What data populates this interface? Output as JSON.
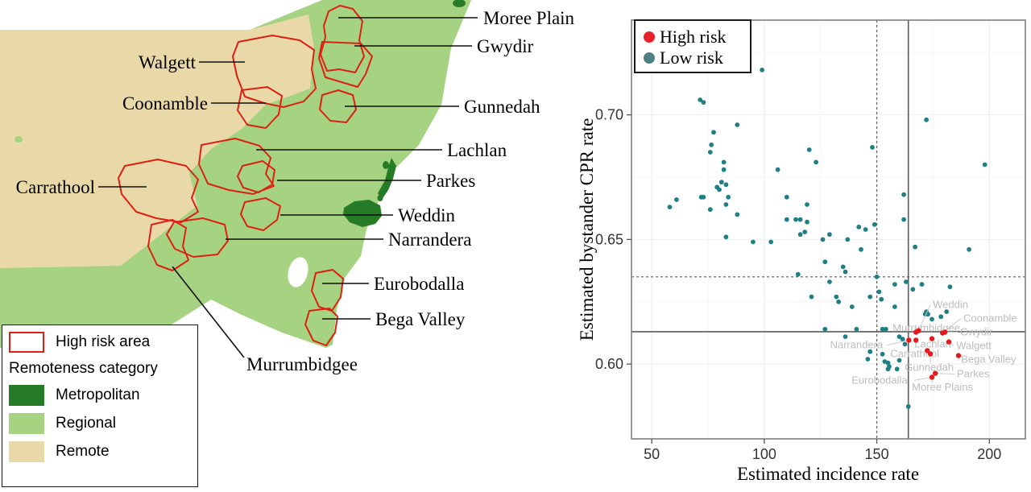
{
  "map": {
    "region_labels": [
      "Moree Plain",
      "Gwydir",
      "Walgett",
      "Coonamble",
      "Gunnedah",
      "Lachlan",
      "Carrathool",
      "Parkes",
      "Weddin",
      "Narrandera",
      "Eurobodalla",
      "Bega Valley",
      "Murrumbidgee"
    ],
    "legend": {
      "high_risk_label": "High risk area",
      "remoteness_title": "Remoteness category",
      "high_risk_outline_color": "#dd1f14",
      "categories": [
        {
          "label": "Metropolitan",
          "color": "#267b26"
        },
        {
          "label": "Regional",
          "color": "#a6d382"
        },
        {
          "label": "Remote",
          "color": "#ead9a8"
        }
      ]
    }
  },
  "chart_data": {
    "type": "scatter",
    "xlabel": "Estimated incidence rate",
    "ylabel": "Estimated bystander CPR rate",
    "xlim": [
      41,
      216
    ],
    "ylim": [
      0.57,
      0.738
    ],
    "x_ticks": [
      "50",
      "100",
      "150",
      "200"
    ],
    "y_ticks": [
      "0.70",
      "0.65",
      "0.60"
    ],
    "y_tick_values": [
      0.7,
      0.65,
      0.6
    ],
    "x_tick_values": [
      50,
      100,
      150,
      200
    ],
    "grid": true,
    "legend": {
      "position": "top-left",
      "entries": [
        {
          "label": "High risk",
          "color": "#e8202a"
        },
        {
          "label": "Low risk",
          "color": "#4e7f83"
        }
      ]
    },
    "reference_lines": {
      "solid_x": 164,
      "solid_y": 0.613,
      "dashed_x": 150,
      "dashed_y": 0.635
    },
    "series": [
      {
        "name": "High risk",
        "color": "#e41a1c",
        "points": [
          [
            167.4,
            0.6128
          ],
          [
            168.5,
            0.6134
          ],
          [
            164.2,
            0.6096
          ],
          [
            167.4,
            0.6096
          ],
          [
            174.5,
            0.6102
          ],
          [
            179.2,
            0.6125
          ],
          [
            180.3,
            0.6128
          ],
          [
            182.0,
            0.6089
          ],
          [
            172.4,
            0.6054
          ],
          [
            186.3,
            0.6034
          ],
          [
            176.0,
            0.5963
          ],
          [
            174.5,
            0.5947
          ],
          [
            173.8,
            0.6041
          ]
        ]
      },
      {
        "name": "Low risk",
        "color": "#1f7f84",
        "points": [
          [
            99,
            0.718
          ],
          [
            71.5,
            0.706
          ],
          [
            73,
            0.705
          ],
          [
            88,
            0.696
          ],
          [
            77.5,
            0.693
          ],
          [
            76.5,
            0.688
          ],
          [
            76,
            0.685
          ],
          [
            120,
            0.686
          ],
          [
            123,
            0.681
          ],
          [
            82,
            0.681
          ],
          [
            82,
            0.678
          ],
          [
            106,
            0.678
          ],
          [
            81,
            0.673
          ],
          [
            79,
            0.671
          ],
          [
            80,
            0.67
          ],
          [
            83,
            0.672
          ],
          [
            61,
            0.666
          ],
          [
            58,
            0.663
          ],
          [
            72,
            0.667
          ],
          [
            73,
            0.667
          ],
          [
            76,
            0.662
          ],
          [
            83,
            0.664
          ],
          [
            84,
            0.667
          ],
          [
            88,
            0.66
          ],
          [
            110,
            0.667
          ],
          [
            110,
            0.658
          ],
          [
            114,
            0.658
          ],
          [
            116,
            0.658
          ],
          [
            119,
            0.664
          ],
          [
            119,
            0.657
          ],
          [
            118,
            0.653
          ],
          [
            116,
            0.652
          ],
          [
            126,
            0.65
          ],
          [
            129,
            0.652
          ],
          [
            83,
            0.651
          ],
          [
            95,
            0.649
          ],
          [
            103,
            0.649
          ],
          [
            172,
            0.698
          ],
          [
            148,
            0.687
          ],
          [
            198,
            0.68
          ],
          [
            162,
            0.668
          ],
          [
            162,
            0.658
          ],
          [
            149,
            0.656
          ],
          [
            142,
            0.655
          ],
          [
            145,
            0.654
          ],
          [
            137,
            0.65
          ],
          [
            143,
            0.646
          ],
          [
            167,
            0.647
          ],
          [
            191,
            0.646
          ],
          [
            127,
            0.641
          ],
          [
            115,
            0.636
          ],
          [
            135,
            0.639
          ],
          [
            136,
            0.637
          ],
          [
            129,
            0.633
          ],
          [
            121,
            0.627
          ],
          [
            132,
            0.627
          ],
          [
            127,
            0.614
          ],
          [
            133,
            0.625
          ],
          [
            139,
            0.623
          ],
          [
            147,
            0.627
          ],
          [
            150,
            0.635
          ],
          [
            151,
            0.629
          ],
          [
            152,
            0.626
          ],
          [
            158,
            0.623
          ],
          [
            158,
            0.632
          ],
          [
            163,
            0.633
          ],
          [
            166,
            0.63
          ],
          [
            170,
            0.632
          ],
          [
            182.5,
            0.631
          ],
          [
            172,
            0.621
          ],
          [
            171.5,
            0.62
          ],
          [
            172.7,
            0.62
          ],
          [
            174.5,
            0.618
          ],
          [
            178.5,
            0.619
          ],
          [
            181,
            0.621
          ],
          [
            141,
            0.614
          ],
          [
            136,
            0.611
          ],
          [
            152.5,
            0.614
          ],
          [
            154,
            0.614
          ],
          [
            160,
            0.611
          ],
          [
            161.5,
            0.61
          ],
          [
            162.5,
            0.608
          ],
          [
            147,
            0.605
          ],
          [
            146,
            0.602
          ],
          [
            152.5,
            0.604
          ],
          [
            153.5,
            0.601
          ],
          [
            155,
            0.6005
          ],
          [
            155.5,
            0.599
          ],
          [
            160,
            0.6015
          ],
          [
            155,
            0.598
          ],
          [
            159,
            0.598
          ],
          [
            164,
            0.583
          ]
        ]
      }
    ],
    "point_labels": [
      {
        "text": "Weddin",
        "label_at": [
          174.9,
          0.6238
        ],
        "points_to": [
          168.5,
          0.6134
        ]
      },
      {
        "text": "Coonamble",
        "label_at": [
          188.5,
          0.6183
        ],
        "points_to": [
          179.2,
          0.6125
        ]
      },
      {
        "text": "Murrumbidgee",
        "label_at": [
          157.0,
          0.6144
        ],
        "points_to": [
          167.4,
          0.6128
        ]
      },
      {
        "text": "Gwydir",
        "label_at": [
          187.0,
          0.6128
        ],
        "points_to": [
          180.3,
          0.6128
        ]
      },
      {
        "text": "Narrandera",
        "label_at": [
          129.2,
          0.6076
        ],
        "points_to": [
          164.2,
          0.6096
        ]
      },
      {
        "text": "Lachlan",
        "label_at": [
          166.7,
          0.608
        ],
        "points_to": [
          167.4,
          0.6096
        ]
      },
      {
        "text": "Walgett",
        "label_at": [
          185.3,
          0.6073
        ],
        "points_to": [
          182.0,
          0.6089
        ]
      },
      {
        "text": "Carrathool",
        "label_at": [
          156.0,
          0.6041
        ],
        "points_to": [
          172.4,
          0.6054
        ]
      },
      {
        "text": "Bega Valley",
        "label_at": [
          187.4,
          0.6018
        ],
        "points_to": [
          186.3,
          0.6034
        ]
      },
      {
        "text": "Gunnedah",
        "label_at": [
          162.4,
          0.5986
        ],
        "points_to": [
          173.8,
          0.6041
        ]
      },
      {
        "text": "Parkes",
        "label_at": [
          185.6,
          0.596
        ],
        "points_to": [
          176.0,
          0.5963
        ]
      },
      {
        "text": "Eurobodalla",
        "label_at": [
          138.8,
          0.5935
        ],
        "points_to": [
          174.5,
          0.5947
        ]
      },
      {
        "text": "Moree Plains",
        "label_at": [
          165.6,
          0.5906
        ],
        "points_to": [
          174.5,
          0.5947
        ]
      }
    ]
  },
  "colors": {
    "label_gray": "#bdbdbd",
    "leader_gray": "#cccccc",
    "ref_line": "#5a5a5a",
    "grid_major": "#ededed",
    "grid_minor": "#f6f6f6",
    "panel_border": "#7f7f7f",
    "tick_text": "#333333"
  }
}
